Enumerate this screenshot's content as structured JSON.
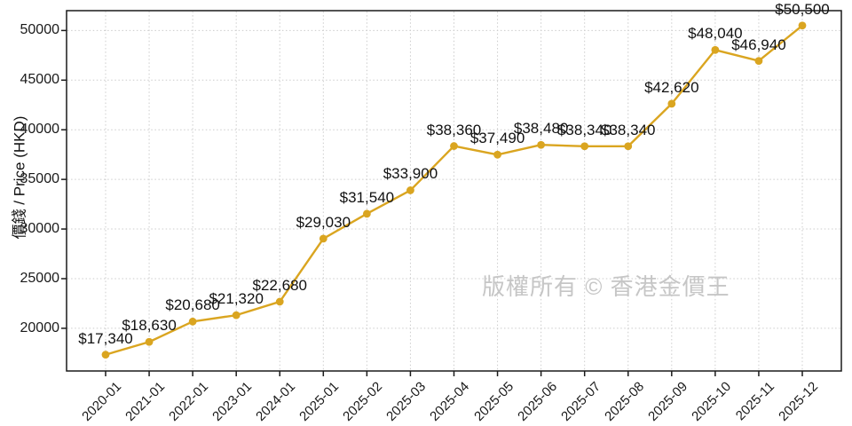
{
  "chart_data": {
    "type": "line",
    "title": "",
    "xlabel": "",
    "ylabel": "價錢 / Price (HKD)",
    "watermark": "版權所有 © 香港金價王",
    "categories": [
      "2020-01",
      "2021-01",
      "2022-01",
      "2023-01",
      "2024-01",
      "2025-01",
      "2025-02",
      "2025-03",
      "2025-04",
      "2025-05",
      "2025-06",
      "2025-07",
      "2025-08",
      "2025-09",
      "2025-10",
      "2025-11",
      "2025-12"
    ],
    "values": [
      17340,
      18630,
      20680,
      21320,
      22680,
      29030,
      31540,
      33900,
      38360,
      37490,
      38480,
      38340,
      38340,
      42620,
      48040,
      46940,
      50500
    ],
    "point_labels": [
      "$17,340",
      "$18,630",
      "$20,680",
      "$21,320",
      "$22,680",
      "$29,030",
      "$31,540",
      "$33,900",
      "$38,360",
      "$37,490",
      "$38,480",
      "$38,340",
      "$38,340",
      "$42,620",
      "$48,040",
      "$46,940",
      "$50,500"
    ],
    "y_ticks": [
      20000,
      25000,
      30000,
      35000,
      40000,
      45000,
      50000
    ],
    "ylim": [
      15700,
      52000
    ],
    "grid": true,
    "legend": "none",
    "colors": {
      "line": "#DAA520",
      "marker": "#DAA520",
      "grid": "#cccccc",
      "axis": "#1a1a1a",
      "tick_label": "#1a1a1a",
      "point_label": "#111111",
      "watermark": "#c6c6c6",
      "background": "#ffffff"
    }
  }
}
